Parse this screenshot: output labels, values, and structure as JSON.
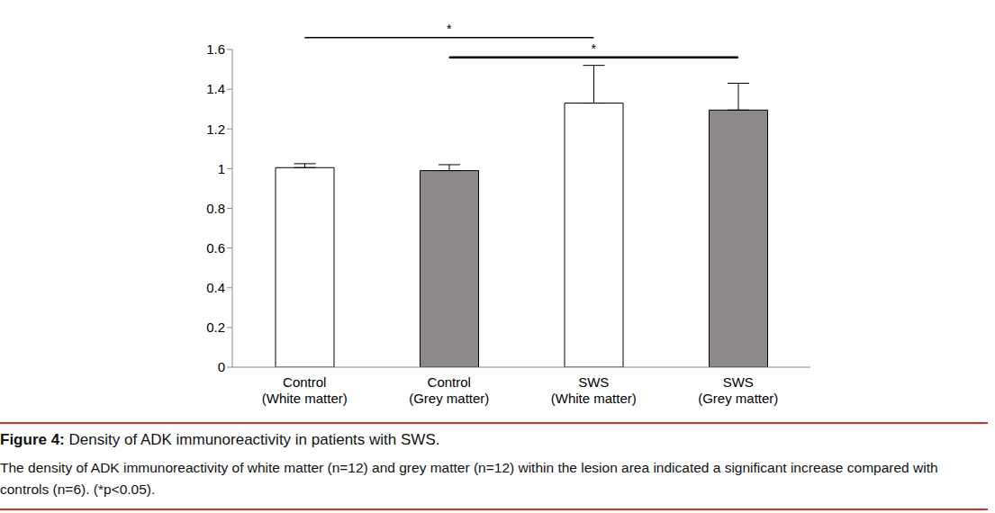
{
  "chart_data": {
    "type": "bar",
    "title": "Figure 4: Density of ADK immunoreactivity in patients with SWS.",
    "subtitle": "The density of ADK immunoreactivity of white matter (n=12) and grey matter (n=12) within the lesion area indicated a significant increase compared with controls (n=6). (*p<0.05).",
    "categories": [
      "Control\n(White matter)",
      "Control\n(Grey matter)",
      "SWS\n(White matter)",
      "SWS\n(Grey matter)"
    ],
    "values": [
      1.005,
      0.99,
      1.33,
      1.295
    ],
    "errors": [
      0.02,
      0.03,
      0.19,
      0.135
    ],
    "colors": [
      "#ffffff",
      "#8e8a8a",
      "#ffffff",
      "#8e8a8a"
    ],
    "ylim": [
      0,
      1.6
    ],
    "yticks": [
      0,
      0.2,
      0.4,
      0.6,
      0.8,
      1,
      1.2,
      1.4,
      1.6
    ],
    "grid": false,
    "annotations": [
      {
        "text": "*",
        "from": 0,
        "to": 2,
        "y": 1.66
      },
      {
        "text": "*",
        "from": 1,
        "to": 3,
        "y": 1.56
      }
    ]
  }
}
